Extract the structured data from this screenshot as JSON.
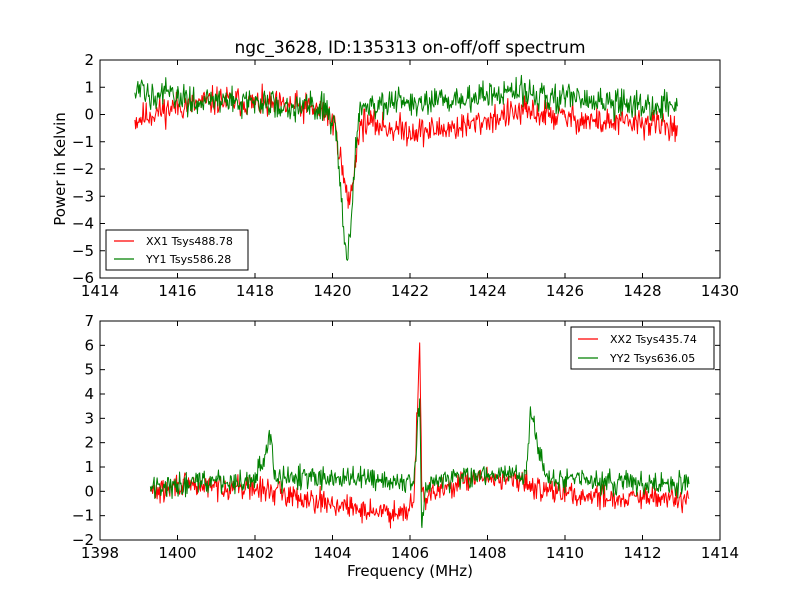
{
  "chart_data": [
    {
      "type": "line",
      "title": "ngc_3628, ID:135313 on-off/off spectrum",
      "xlabel": "",
      "ylabel": "Power in Kelvin",
      "xlim": [
        1414,
        1430
      ],
      "ylim": [
        -6,
        2
      ],
      "xticks": [
        "1414",
        "1416",
        "1418",
        "1420",
        "1422",
        "1424",
        "1426",
        "1428",
        "1430"
      ],
      "yticks": [
        "−6",
        "−5",
        "−4",
        "−3",
        "−2",
        "−1",
        "0",
        "1",
        "2"
      ],
      "legend_position": "lower-left",
      "grid": false,
      "series": [
        {
          "name": "XX1 Tsys488.78",
          "color": "#ff0000",
          "x": [
            1414.9,
            1415.5,
            1416.0,
            1416.5,
            1417.0,
            1417.5,
            1418.0,
            1418.5,
            1419.0,
            1419.5,
            1419.9,
            1420.1,
            1420.3,
            1420.4,
            1420.5,
            1420.6,
            1420.7,
            1420.8,
            1421.0,
            1421.5,
            1422.0,
            1422.5,
            1423.0,
            1423.5,
            1424.0,
            1424.5,
            1425.0,
            1425.5,
            1426.0,
            1426.5,
            1427.0,
            1427.5,
            1428.0,
            1428.5,
            1428.9
          ],
          "y": [
            -0.2,
            0.1,
            0.3,
            0.4,
            0.5,
            0.5,
            0.4,
            0.3,
            0.3,
            0.2,
            0.0,
            -0.6,
            -2.5,
            -3.2,
            -2.8,
            -1.5,
            -0.5,
            -0.3,
            -0.3,
            -0.5,
            -0.6,
            -0.6,
            -0.5,
            -0.4,
            -0.2,
            0.0,
            0.1,
            0.0,
            -0.1,
            -0.2,
            -0.3,
            -0.3,
            -0.3,
            -0.4,
            -0.4
          ]
        },
        {
          "name": "YY1 Tsys586.28",
          "color": "#008000",
          "x": [
            1414.9,
            1415.5,
            1416.0,
            1416.5,
            1417.0,
            1417.5,
            1418.0,
            1418.5,
            1419.0,
            1419.5,
            1419.9,
            1420.1,
            1420.3,
            1420.4,
            1420.5,
            1420.6,
            1420.7,
            1420.8,
            1421.0,
            1421.5,
            1422.0,
            1422.5,
            1423.0,
            1423.5,
            1424.0,
            1424.5,
            1425.0,
            1425.5,
            1426.0,
            1426.5,
            1427.0,
            1427.5,
            1428.0,
            1428.5,
            1428.9
          ],
          "y": [
            0.8,
            0.8,
            0.6,
            0.5,
            0.5,
            0.5,
            0.4,
            0.4,
            0.3,
            0.3,
            0.2,
            -0.6,
            -4.5,
            -5.3,
            -3.5,
            -1.0,
            0.2,
            0.4,
            0.4,
            0.4,
            0.4,
            0.4,
            0.5,
            0.6,
            0.7,
            0.8,
            0.8,
            0.7,
            0.6,
            0.5,
            0.4,
            0.4,
            0.3,
            0.3,
            0.3
          ]
        }
      ]
    },
    {
      "type": "line",
      "title": "",
      "xlabel": "Frequency (MHz)",
      "ylabel": "",
      "xlim": [
        1398,
        1414
      ],
      "ylim": [
        -2,
        7
      ],
      "xticks": [
        "1398",
        "1400",
        "1402",
        "1404",
        "1406",
        "1408",
        "1410",
        "1412",
        "1414"
      ],
      "yticks": [
        "−2",
        "−1",
        "0",
        "1",
        "2",
        "3",
        "4",
        "5",
        "6",
        "7"
      ],
      "legend_position": "upper-right",
      "grid": false,
      "series": [
        {
          "name": "XX2 Tsys435.74",
          "color": "#ff0000",
          "x": [
            1399.3,
            1399.7,
            1400.0,
            1400.5,
            1401.0,
            1401.5,
            1402.0,
            1402.5,
            1403.0,
            1403.5,
            1404.0,
            1404.5,
            1405.0,
            1405.5,
            1405.9,
            1406.1,
            1406.25,
            1406.3,
            1406.4,
            1406.6,
            1407.0,
            1407.5,
            1408.0,
            1408.5,
            1409.0,
            1409.5,
            1410.0,
            1410.5,
            1411.0,
            1411.5,
            1412.0,
            1412.5,
            1413.2
          ],
          "y": [
            0.0,
            0.0,
            0.3,
            0.2,
            0.2,
            0.2,
            0.1,
            0.0,
            -0.2,
            -0.3,
            -0.5,
            -0.7,
            -0.8,
            -0.9,
            -0.7,
            -0.4,
            6.1,
            0.5,
            -0.3,
            -0.1,
            0.2,
            0.4,
            0.6,
            0.5,
            0.3,
            0.1,
            -0.1,
            -0.2,
            -0.2,
            -0.3,
            -0.3,
            -0.3,
            -0.3
          ]
        },
        {
          "name": "YY2 Tsys636.05",
          "color": "#008000",
          "x": [
            1399.3,
            1399.7,
            1400.0,
            1400.5,
            1401.0,
            1401.5,
            1402.0,
            1402.4,
            1402.5,
            1403.0,
            1403.5,
            1404.0,
            1404.5,
            1405.0,
            1405.5,
            1405.9,
            1406.1,
            1406.25,
            1406.3,
            1406.4,
            1406.6,
            1407.0,
            1407.5,
            1408.0,
            1408.5,
            1409.0,
            1409.1,
            1409.5,
            1410.0,
            1410.5,
            1411.0,
            1411.5,
            1412.0,
            1412.5,
            1413.2
          ],
          "y": [
            0.2,
            0.2,
            0.3,
            0.4,
            0.4,
            0.4,
            0.4,
            2.2,
            0.5,
            0.6,
            0.6,
            0.6,
            0.5,
            0.5,
            0.4,
            0.4,
            0.3,
            3.8,
            -1.4,
            0.1,
            0.3,
            0.5,
            0.6,
            0.7,
            0.7,
            0.7,
            3.3,
            0.6,
            0.5,
            0.5,
            0.4,
            0.4,
            0.3,
            0.3,
            0.3
          ]
        }
      ]
    }
  ]
}
